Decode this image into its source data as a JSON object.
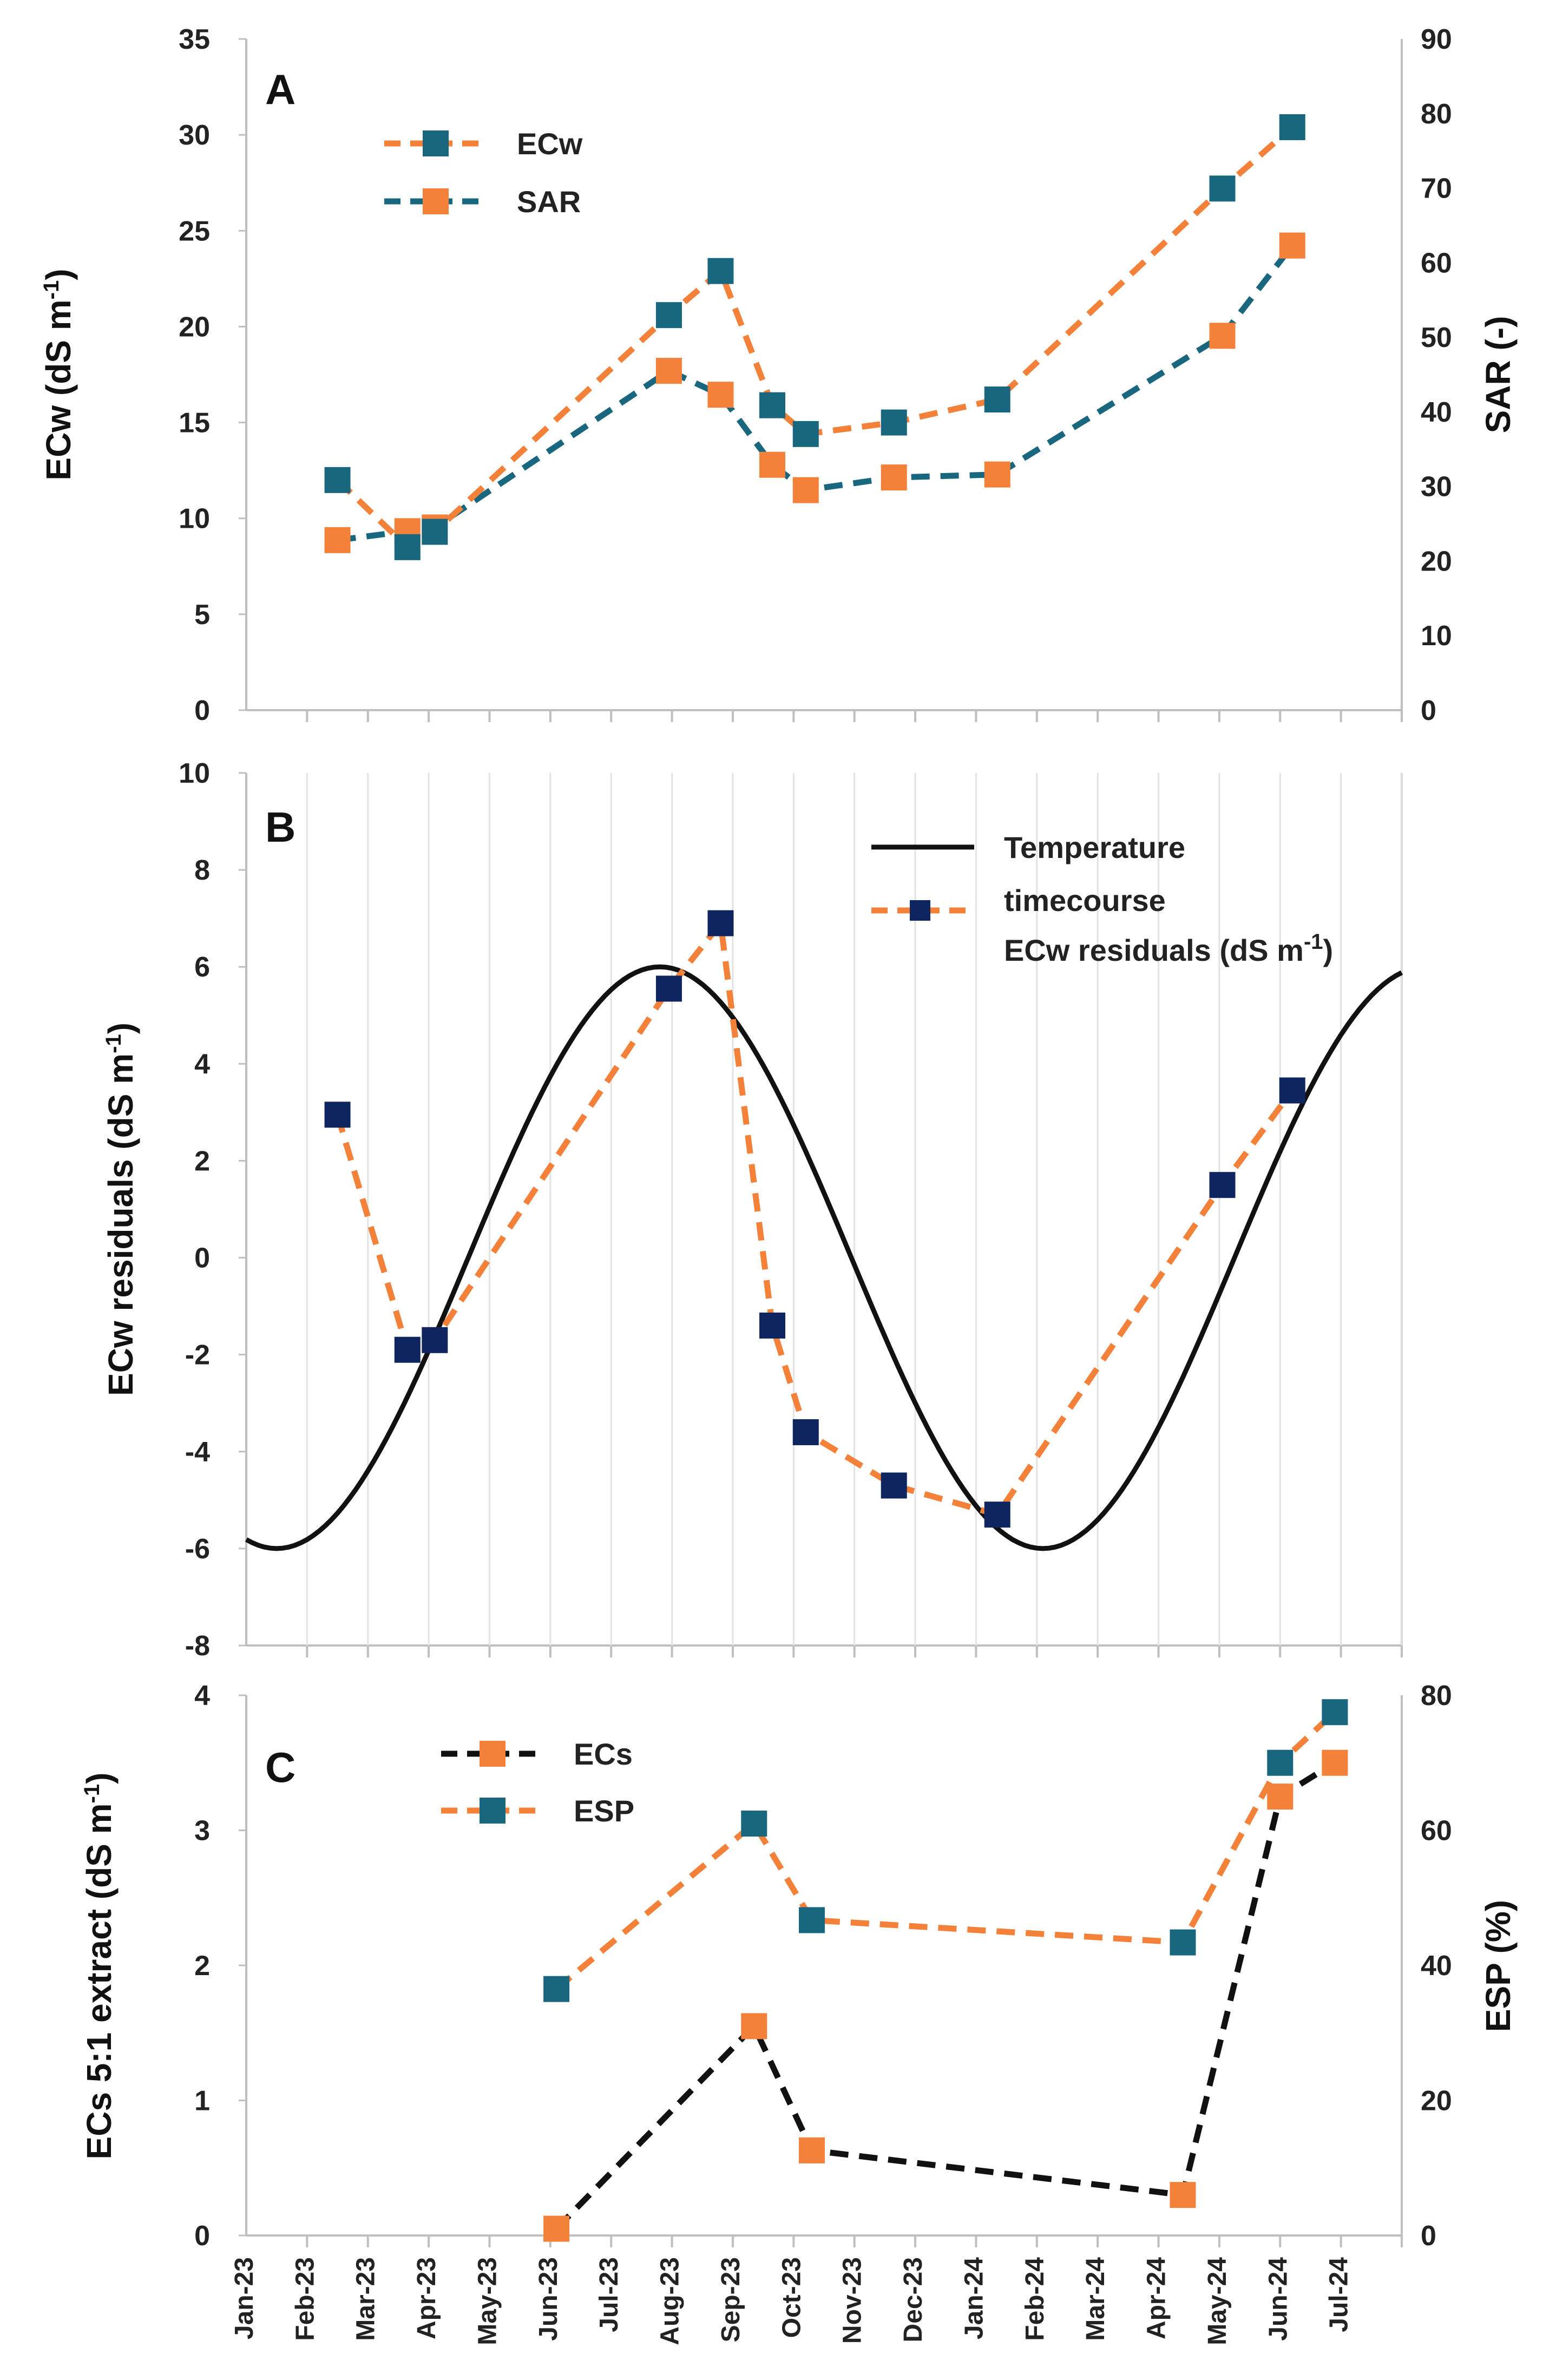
{
  "months": [
    "Jan-23",
    "Feb-23",
    "Mar-23",
    "Apr-23",
    "May-23",
    "Jun-23",
    "Jul-23",
    "Aug-23",
    "Sep-23",
    "Oct-23",
    "Nov-23",
    "Dec-23",
    "Jan-24",
    "Feb-24",
    "Mar-24",
    "Apr-24",
    "May-24",
    "Jun-24",
    "Jul-24"
  ],
  "colors": {
    "orange": "#F4813A",
    "teal": "#19677F",
    "navy": "#0E2560",
    "black": "#111111"
  },
  "chart_data": [
    {
      "id": "A",
      "type": "line",
      "panel_label": "A",
      "ylabel_left": "ECw (dS m-1)",
      "ylabel_right": "SAR (-)",
      "ylim_left": [
        0,
        35
      ],
      "ylim_right": [
        0,
        90
      ],
      "yticks_left": [
        "0",
        "5",
        "10",
        "15",
        "20",
        "25",
        "30",
        "35"
      ],
      "yticks_right": [
        "0",
        "10",
        "20",
        "30",
        "40",
        "50",
        "60",
        "70",
        "80",
        "90"
      ],
      "legend": [
        "ECw",
        "SAR"
      ],
      "series": [
        {
          "name": "ECw",
          "axis": "left",
          "line_color": "orange",
          "marker_color": "teal",
          "x": [
            1.5,
            2.65,
            3.1,
            6.95,
            7.8,
            8.65,
            9.2,
            10.65,
            12.35,
            16.05,
            17.2
          ],
          "y": [
            12.0,
            8.5,
            9.3,
            20.6,
            22.9,
            15.9,
            14.4,
            15.0,
            16.2,
            27.2,
            30.4
          ]
        },
        {
          "name": "SAR",
          "axis": "right",
          "line_color": "teal",
          "marker_color": "orange",
          "x": [
            1.5,
            2.65,
            3.1,
            6.95,
            7.8,
            8.65,
            9.2,
            10.65,
            12.35,
            16.05,
            17.2
          ],
          "y": [
            22.8,
            24.0,
            24.5,
            45.5,
            42.3,
            32.9,
            29.5,
            31.2,
            31.6,
            50.2,
            62.3
          ]
        }
      ]
    },
    {
      "id": "B",
      "type": "line",
      "panel_label": "B",
      "ylabel": "ECw residuals (dS m-1)",
      "ylim": [
        -8,
        10
      ],
      "yticks": [
        "-8",
        "-6",
        "-4",
        "-2",
        "0",
        "2",
        "4",
        "6",
        "8",
        "10"
      ],
      "legend": [
        "Temperature",
        "timecourse",
        "ECw residuals (dS m-1)"
      ],
      "temperature_curve": {
        "amplitude": 6,
        "trough_month": 0.5,
        "peak_month": 6.8,
        "second_peak_month": 19.4
      },
      "series": [
        {
          "name": "ECw residuals (dS m-1)",
          "line_color": "orange",
          "marker_color": "navy",
          "x": [
            1.5,
            2.65,
            3.1,
            6.95,
            7.8,
            8.65,
            9.2,
            10.65,
            12.35,
            16.05,
            17.2
          ],
          "y": [
            2.95,
            -1.9,
            -1.7,
            5.55,
            6.9,
            -1.4,
            -3.6,
            -4.7,
            -5.3,
            1.5,
            3.45
          ]
        }
      ]
    },
    {
      "id": "C",
      "type": "line",
      "panel_label": "C",
      "ylabel_left": "ECs 5:1 extract (dS m-1)",
      "ylabel_right": "ESP (%)",
      "ylim_left": [
        0,
        4
      ],
      "ylim_right": [
        0,
        80
      ],
      "yticks_left": [
        "0",
        "1",
        "2",
        "3",
        "4"
      ],
      "yticks_right": [
        "0",
        "20",
        "40",
        "60",
        "80"
      ],
      "legend": [
        "ECs",
        "ESP"
      ],
      "series": [
        {
          "name": "ECs",
          "axis": "left",
          "line_color": "black",
          "marker_color": "orange",
          "x": [
            5.1,
            8.35,
            9.3,
            15.4,
            17.0,
            17.9
          ],
          "y": [
            0.05,
            1.55,
            0.63,
            0.3,
            3.25,
            3.5
          ]
        },
        {
          "name": "ESP",
          "axis": "right",
          "line_color": "orange",
          "marker_color": "teal",
          "x": [
            5.1,
            8.35,
            9.3,
            15.4,
            17.0,
            17.9
          ],
          "y": [
            36.5,
            61.0,
            46.7,
            43.4,
            70.0,
            77.5
          ]
        }
      ]
    }
  ]
}
